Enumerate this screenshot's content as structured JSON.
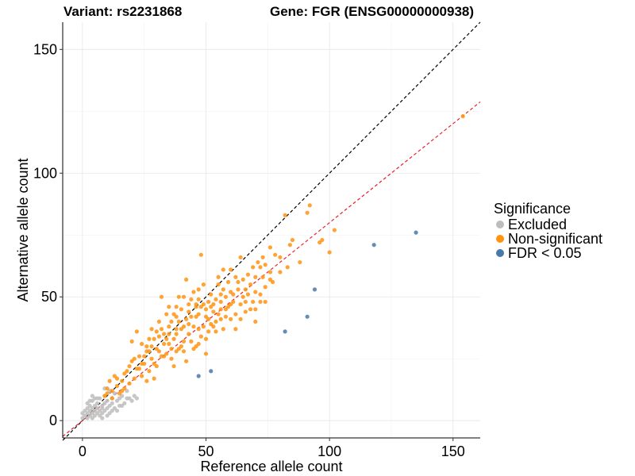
{
  "header": {
    "variant": "Variant: rs2231868",
    "gene": "Gene: FGR (ENSG00000000938)"
  },
  "legend": {
    "title": "Significance",
    "items": [
      {
        "label": "Excluded",
        "color": "#bdbdbd"
      },
      {
        "label": "Non-significant",
        "color": "#ff9410"
      },
      {
        "label": "FDR < 0.05",
        "color": "#4a78a8"
      }
    ]
  },
  "chart_data": {
    "type": "scatter",
    "title": "",
    "xlabel": "Reference allele count",
    "ylabel": "Alternative allele count",
    "xlim": [
      -8,
      161
    ],
    "ylim": [
      -7,
      161
    ],
    "xticks": [
      0,
      50,
      100,
      150
    ],
    "yticks": [
      0,
      50,
      100,
      150
    ],
    "grid": true,
    "legend_position": "right",
    "reference_lines": [
      {
        "name": "identity",
        "slope": 1,
        "intercept": 0,
        "color": "#000000",
        "style": "dashed"
      },
      {
        "name": "fit",
        "slope": 0.8,
        "intercept": 0,
        "color": "#e8202a",
        "style": "dashed"
      }
    ],
    "series": [
      {
        "name": "Excluded",
        "color": "#bdbdbd",
        "points": [
          [
            0,
            1
          ],
          [
            0,
            3
          ],
          [
            1,
            2
          ],
          [
            1,
            4
          ],
          [
            2,
            1
          ],
          [
            2,
            3
          ],
          [
            2,
            5
          ],
          [
            3,
            2
          ],
          [
            3,
            4
          ],
          [
            3,
            6
          ],
          [
            4,
            1
          ],
          [
            4,
            3
          ],
          [
            4,
            5
          ],
          [
            4,
            8
          ],
          [
            5,
            2
          ],
          [
            5,
            4
          ],
          [
            5,
            6
          ],
          [
            5,
            9
          ],
          [
            6,
            3
          ],
          [
            6,
            5
          ],
          [
            6,
            7
          ],
          [
            7,
            2
          ],
          [
            7,
            4
          ],
          [
            7,
            9
          ],
          [
            8,
            3
          ],
          [
            8,
            5
          ],
          [
            8,
            6
          ],
          [
            9,
            4
          ],
          [
            9,
            7
          ],
          [
            9,
            10
          ],
          [
            10,
            5
          ],
          [
            10,
            8
          ],
          [
            11,
            3
          ],
          [
            11,
            6
          ],
          [
            12,
            7
          ],
          [
            12,
            9
          ],
          [
            13,
            5
          ],
          [
            13,
            11
          ],
          [
            14,
            8
          ],
          [
            15,
            6
          ],
          [
            15,
            9
          ],
          [
            16,
            10
          ],
          [
            17,
            7
          ],
          [
            18,
            12
          ],
          [
            19,
            9
          ],
          [
            20,
            8
          ],
          [
            21,
            10
          ],
          [
            22,
            9
          ],
          [
            9,
            13
          ],
          [
            11,
            12
          ],
          [
            6,
            9
          ],
          [
            3,
            8
          ],
          [
            14,
            4
          ],
          [
            16,
            6
          ],
          [
            18,
            9
          ],
          [
            10,
            2
          ],
          [
            8,
            1
          ],
          [
            12,
            4
          ],
          [
            4,
            10
          ],
          [
            2,
            7
          ]
        ]
      },
      {
        "name": "Non-significant",
        "color": "#ff9410",
        "points": [
          [
            154,
            123
          ],
          [
            102,
            77
          ],
          [
            100,
            68
          ],
          [
            97,
            73
          ],
          [
            96,
            72
          ],
          [
            92,
            87
          ],
          [
            91,
            84
          ],
          [
            85,
            73
          ],
          [
            84,
            71
          ],
          [
            82,
            83
          ],
          [
            77,
            56
          ],
          [
            80,
            60
          ],
          [
            76,
            70
          ],
          [
            74,
            63
          ],
          [
            72,
            51
          ],
          [
            70,
            58
          ],
          [
            68,
            55
          ],
          [
            66,
            48
          ],
          [
            64,
            66
          ],
          [
            62,
            58
          ],
          [
            60,
            52
          ],
          [
            58,
            45
          ],
          [
            57,
            61
          ],
          [
            56,
            48
          ],
          [
            55,
            55
          ],
          [
            54,
            40
          ],
          [
            53,
            44
          ],
          [
            52,
            51
          ],
          [
            51,
            36
          ],
          [
            50,
            42
          ],
          [
            49,
            47
          ],
          [
            48,
            67
          ],
          [
            47,
            53
          ],
          [
            46,
            42
          ],
          [
            45,
            38
          ],
          [
            44,
            49
          ],
          [
            43,
            35
          ],
          [
            42,
            41
          ],
          [
            41,
            32
          ],
          [
            40,
            45
          ],
          [
            39,
            29
          ],
          [
            38,
            37
          ],
          [
            37,
            33
          ],
          [
            36,
            40
          ],
          [
            35,
            31
          ],
          [
            34,
            27
          ],
          [
            33,
            35
          ],
          [
            32,
            50
          ],
          [
            31,
            28
          ],
          [
            30,
            22
          ],
          [
            29,
            33
          ],
          [
            28,
            25
          ],
          [
            27,
            20
          ],
          [
            26,
            30
          ],
          [
            25,
            23
          ],
          [
            24,
            18
          ],
          [
            23,
            26
          ],
          [
            22,
            36
          ],
          [
            21,
            17
          ],
          [
            20,
            24
          ],
          [
            19,
            15
          ],
          [
            18,
            20
          ],
          [
            17,
            13
          ],
          [
            16,
            16
          ],
          [
            15,
            11
          ],
          [
            14,
            14
          ],
          [
            13,
            18
          ],
          [
            12,
            12
          ],
          [
            11,
            16
          ],
          [
            10,
            13
          ],
          [
            9,
            10
          ],
          [
            28,
            37
          ],
          [
            33,
            26
          ],
          [
            36,
            29
          ],
          [
            41,
            28
          ],
          [
            45,
            29
          ],
          [
            48,
            34
          ],
          [
            50,
            27
          ],
          [
            54,
            36
          ],
          [
            57,
            37
          ],
          [
            60,
            41
          ],
          [
            62,
            43
          ],
          [
            64,
            47
          ],
          [
            66,
            53
          ],
          [
            70,
            52
          ],
          [
            72,
            62
          ],
          [
            76,
            60
          ],
          [
            80,
            66
          ],
          [
            35,
            46
          ],
          [
            39,
            50
          ],
          [
            42,
            57
          ],
          [
            46,
            47
          ],
          [
            49,
            55
          ],
          [
            52,
            46
          ],
          [
            56,
            51
          ],
          [
            59,
            56
          ],
          [
            63,
            56
          ],
          [
            67,
            59
          ],
          [
            71,
            64
          ],
          [
            74,
            54
          ],
          [
            78,
            67
          ],
          [
            26,
            28
          ],
          [
            30,
            36
          ],
          [
            34,
            33
          ],
          [
            38,
            35
          ],
          [
            43,
            39
          ],
          [
            47,
            37
          ],
          [
            51,
            41
          ],
          [
            55,
            43
          ],
          [
            58,
            50
          ],
          [
            61,
            48
          ],
          [
            65,
            50
          ],
          [
            69,
            48
          ],
          [
            73,
            58
          ],
          [
            24,
            31
          ],
          [
            27,
            33
          ],
          [
            31,
            40
          ],
          [
            37,
            43
          ],
          [
            40,
            37
          ],
          [
            44,
            32
          ],
          [
            47,
            43
          ],
          [
            53,
            38
          ],
          [
            56,
            41
          ],
          [
            59,
            46
          ],
          [
            29,
            23
          ],
          [
            33,
            31
          ],
          [
            38,
            28
          ],
          [
            42,
            24
          ],
          [
            46,
            30
          ],
          [
            50,
            33
          ],
          [
            37,
            22
          ],
          [
            20,
            32
          ],
          [
            17,
            19
          ],
          [
            22,
            21
          ],
          [
            26,
            16
          ],
          [
            29,
            17
          ],
          [
            32,
            26
          ],
          [
            36,
            25
          ],
          [
            40,
            30
          ],
          [
            43,
            44
          ],
          [
            45,
            52
          ],
          [
            48,
            46
          ],
          [
            51,
            48
          ],
          [
            54,
            49
          ],
          [
            57,
            53
          ],
          [
            60,
            47
          ],
          [
            63,
            53
          ],
          [
            68,
            45
          ],
          [
            72,
            48
          ],
          [
            76,
            57
          ],
          [
            83,
            62
          ],
          [
            88,
            64
          ],
          [
            52,
            39
          ],
          [
            47,
            31
          ],
          [
            41,
            38
          ],
          [
            38,
            42
          ],
          [
            35,
            38
          ],
          [
            31,
            34
          ],
          [
            28,
            30
          ],
          [
            25,
            26
          ],
          [
            23,
            21
          ],
          [
            21,
            25
          ],
          [
            19,
            22
          ],
          [
            16,
            12
          ],
          [
            14,
            17
          ],
          [
            12,
            9
          ],
          [
            10,
            11
          ],
          [
            38,
            46
          ],
          [
            41,
            50
          ],
          [
            44,
            42
          ],
          [
            46,
            46
          ],
          [
            49,
            38
          ],
          [
            53,
            47
          ],
          [
            56,
            45
          ],
          [
            58,
            42
          ],
          [
            61,
            51
          ],
          [
            64,
            41
          ],
          [
            67,
            51
          ],
          [
            70,
            45
          ],
          [
            35,
            35
          ],
          [
            32,
            37
          ],
          [
            30,
            29
          ],
          [
            27,
            28
          ],
          [
            24,
            23
          ],
          [
            34,
            43
          ],
          [
            39,
            40
          ],
          [
            43,
            47
          ],
          [
            47,
            49
          ],
          [
            50,
            45
          ],
          [
            55,
            58
          ],
          [
            60,
            61
          ],
          [
            65,
            57
          ],
          [
            69,
            62
          ],
          [
            73,
            66
          ],
          [
            62,
            37
          ],
          [
            66,
            44
          ],
          [
            70,
            40
          ],
          [
            74,
            48
          ]
        ]
      },
      {
        "name": "FDR < 0.05",
        "color": "#4a78a8",
        "points": [
          [
            135,
            76
          ],
          [
            118,
            71
          ],
          [
            94,
            53
          ],
          [
            91,
            42
          ],
          [
            82,
            36
          ],
          [
            52,
            20
          ],
          [
            47,
            18
          ]
        ]
      }
    ]
  }
}
